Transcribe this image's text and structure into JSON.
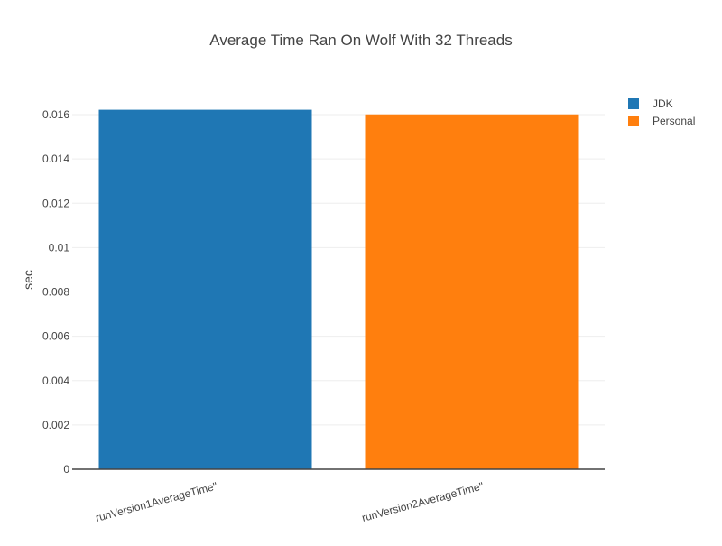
{
  "chart_data": {
    "type": "bar",
    "title": "Average Time Ran On Wolf With 32 Threads",
    "xlabel": "",
    "ylabel": "sec",
    "categories": [
      "runVersion1AverageTime\"",
      "runVersion2AverageTime\""
    ],
    "series": [
      {
        "name": "JDK",
        "color": "#1f77b4",
        "values": [
          0.01622,
          null
        ]
      },
      {
        "name": "Personal",
        "color": "#ff7f0e",
        "values": [
          null,
          0.01601
        ]
      }
    ],
    "ylim": [
      0,
      0.016
    ],
    "yticks": [
      0,
      0.002,
      0.004,
      0.006,
      0.008,
      0.01,
      0.012,
      0.014,
      0.016
    ],
    "ytick_labels": [
      "0",
      "0.002",
      "0.004",
      "0.006",
      "0.008",
      "0.01",
      "0.012",
      "0.014",
      "0.016"
    ],
    "grid": true,
    "legend_position": "top-right",
    "colors": {
      "axis": "#444444",
      "grid": "#eeeeee",
      "baseline": "#444444",
      "text": "#444444"
    }
  }
}
